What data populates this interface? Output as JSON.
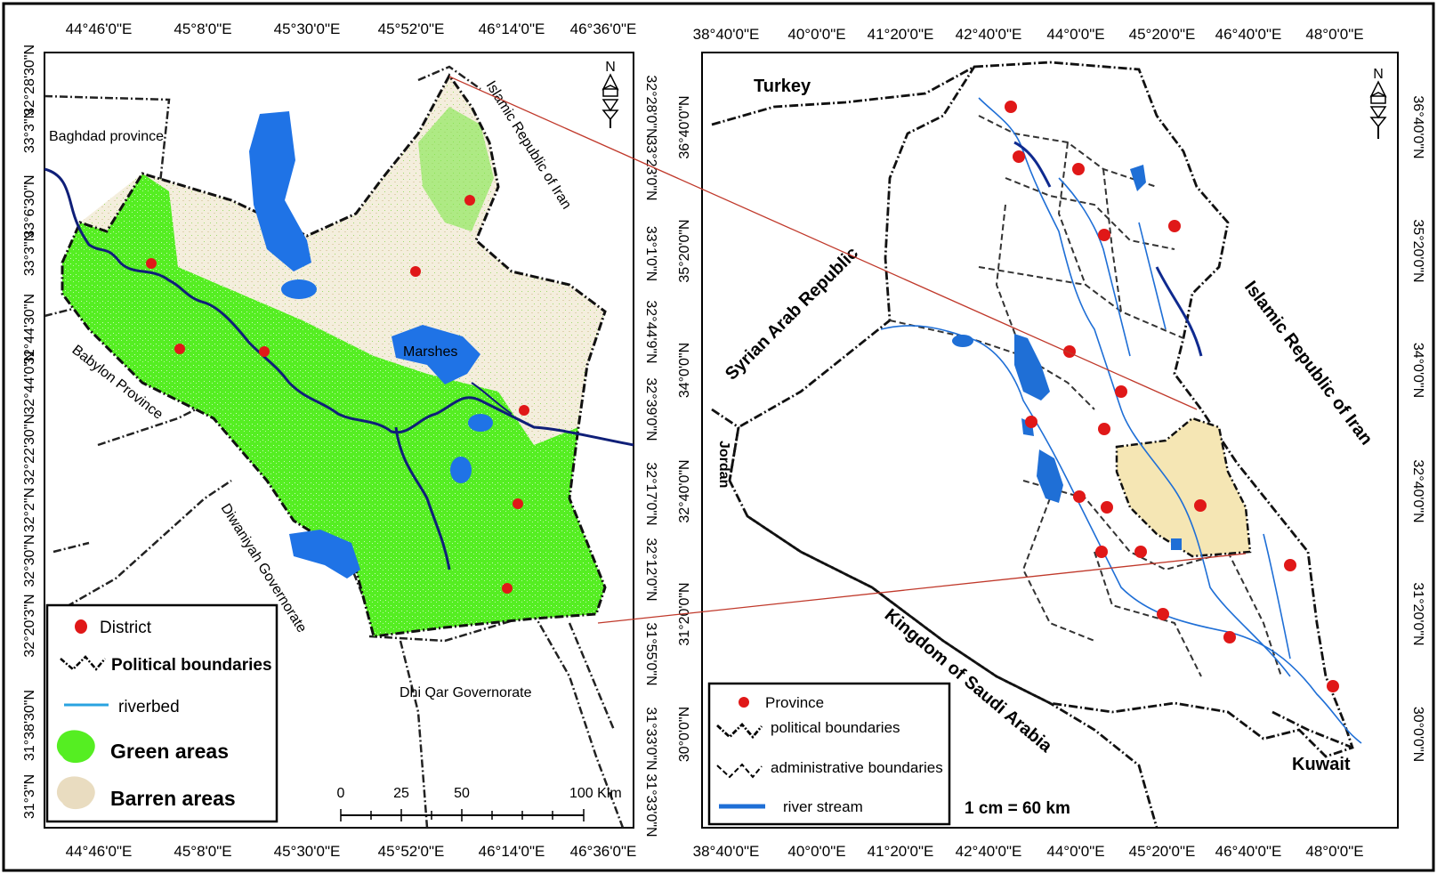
{
  "left_map": {
    "top_ticks": [
      "44°46'0\"E",
      "45°8'0\"E",
      "45°30'0\"E",
      "45°52'0\"E",
      "46°14'0\"E",
      "46°36'0\"E"
    ],
    "bottom_ticks": [
      "44°46'0\"E",
      "45°8'0\"E",
      "45°30'0\"E",
      "45°52'0\"E",
      "46°14'0\"E",
      "46°36'0\"E"
    ],
    "left_ticks": [
      "32°28'30\"N",
      "33°3\"N",
      "33°6'30\"N",
      "33°3\"N",
      "32°44'30\"N",
      "32°44'0\"N",
      "32°22'30\"N",
      "32°2\"N",
      "32°30\"N",
      "32°20'3\"N",
      "31°38'30\"N",
      "31°3\"N"
    ],
    "right_ticks": [
      "32°28'0\"N",
      "33°23'0\"N",
      "33°1'0\"N",
      "32°44'9\"N",
      "32°39'0\"N",
      "32°17'0\"N",
      "32°12'0\"N",
      "31°55'0\"N",
      "31°33'0\"N",
      "31°33'0\"N"
    ],
    "labels": {
      "baghdad": "Baghdad province",
      "iran": "Islamic Republic of Iran",
      "babylon": "Babylon Province",
      "diwaniyah": "Diwaniyah Governorate",
      "dhiqar": "Dhi Qar Governorate",
      "marshes": "Marshes"
    },
    "north_label": "N",
    "scale": {
      "labels": [
        "0",
        "25",
        "50",
        "100 Kim"
      ]
    },
    "legend": {
      "district": "District",
      "political": "Political boundaries",
      "riverbed": "riverbed",
      "green": "Green areas",
      "barren": "Barren areas"
    },
    "colors": {
      "green": "#55ee22",
      "barren": "#e9e0c6",
      "river": "#0f1f78",
      "water": "#1f73e6",
      "district": "#e01818"
    }
  },
  "right_map": {
    "top_ticks": [
      "38°40'0\"E",
      "40°0'0\"E",
      "41°20'0\"E",
      "42°40'0\"E",
      "44°0'0\"E",
      "45°20'0\"E",
      "46°40'0\"E",
      "48°0'0\"E"
    ],
    "bottom_ticks": [
      "38°40'0\"E",
      "40°0'0\"E",
      "41°20'0\"E",
      "42°40'0\"E",
      "44°0'0\"E",
      "45°20'0\"E",
      "46°40'0\"E",
      "48°0'0\"E"
    ],
    "left_ticks": [
      "36°40'0\"N",
      "35°20'0\"N",
      "34°0'0\"N",
      "32°40'0\"N",
      "31°20'0\"N",
      "30°0'0\"N"
    ],
    "right_ticks": [
      "36°40'0\"N",
      "35°20'0\"N",
      "34°0'0\"N",
      "32°40'0\"N",
      "31°20'0\"N",
      "30°0'0\"N"
    ],
    "labels": {
      "turkey": "Turkey",
      "syria": "Syrian Arab Republic",
      "iran": "Islamic Republic of Iran",
      "jordan": "Jordan",
      "saudi": "Kingdom of Saudi Arabia",
      "kuwait": "Kuwait"
    },
    "north_label": "N",
    "legend": {
      "province": "Province",
      "political": "political boundaries",
      "admin": "administrative boundaries",
      "river": "river stream"
    },
    "scale_text": "1 cm = 60 km",
    "colors": {
      "highlight": "#f5e6b4",
      "river": "#1f6fd6",
      "province": "#e01818"
    }
  }
}
